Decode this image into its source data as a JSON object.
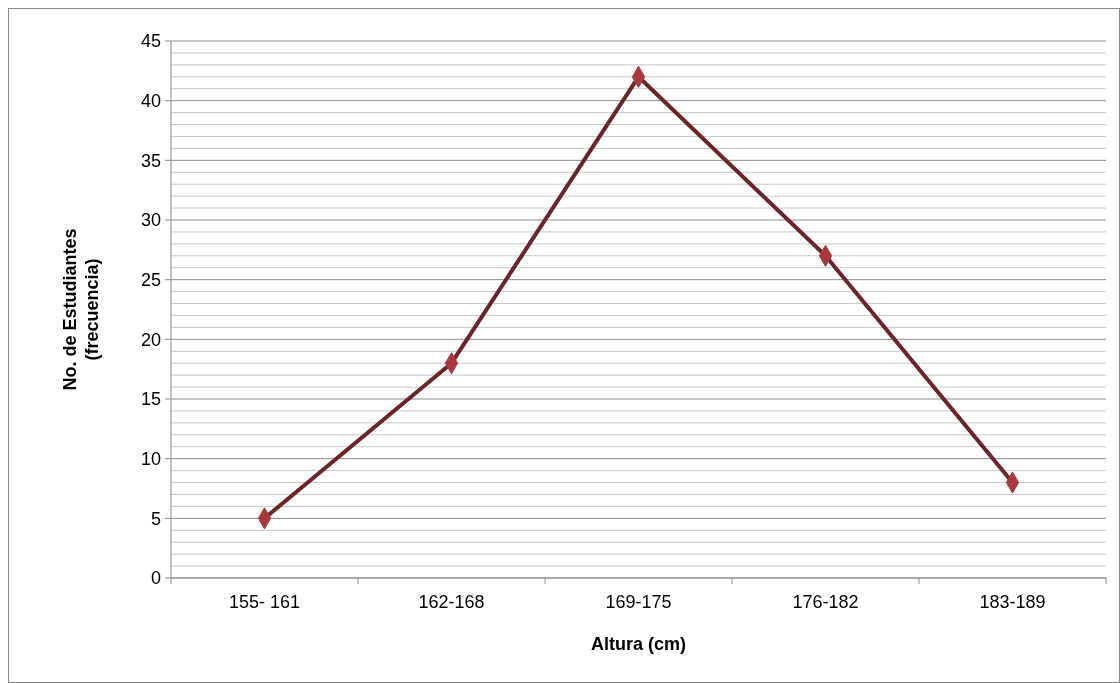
{
  "chart_data": {
    "type": "line",
    "xlabel": "Altura (cm)",
    "ylabel": "No. de Estudiantes\n(frecuencia)",
    "categories": [
      "155- 161",
      "162-168",
      "169-175",
      "176-182",
      "183-189"
    ],
    "series": [
      {
        "color": "#6b2427",
        "values": [
          5,
          18,
          42,
          27,
          8
        ]
      }
    ],
    "ylim": [
      0,
      45
    ],
    "yticks": [
      0,
      {
        "value": 1,
        "label": null
      },
      {
        "value": 2,
        "label": null
      },
      {
        "value": 3,
        "label": null
      },
      {
        "value": 4,
        "label": null
      },
      5,
      {
        "value": 6,
        "label": null
      },
      {
        "value": 7,
        "label": null
      },
      {
        "value": 8,
        "label": null
      },
      {
        "value": 9,
        "label": null
      },
      10,
      {
        "value": 11,
        "label": null
      },
      {
        "value": 12,
        "label": null
      },
      {
        "value": 13,
        "label": null
      },
      {
        "value": 14,
        "label": null
      },
      15,
      {
        "value": 16,
        "label": null
      },
      {
        "value": 17,
        "label": null
      },
      {
        "value": 18,
        "label": null
      },
      {
        "value": 19,
        "label": null
      },
      20,
      {
        "value": 21,
        "label": null
      },
      {
        "value": 22,
        "label": null
      },
      {
        "value": 23,
        "label": null
      },
      {
        "value": 24,
        "label": null
      },
      25,
      {
        "value": 26,
        "label": null
      },
      {
        "value": 27,
        "label": null
      },
      {
        "value": 28,
        "label": null
      },
      {
        "value": 29,
        "label": null
      },
      30,
      {
        "value": 31,
        "label": null
      },
      {
        "value": 32,
        "label": null
      },
      {
        "value": 33,
        "label": null
      },
      {
        "value": 34,
        "label": null
      },
      35,
      {
        "value": 36,
        "label": null
      },
      {
        "value": 37,
        "label": null
      },
      {
        "value": 38,
        "label": null
      },
      {
        "value": 39,
        "label": null
      },
      40,
      {
        "value": 41,
        "label": null
      },
      {
        "value": 42,
        "label": null
      },
      {
        "value": 43,
        "label": null
      },
      {
        "value": 44,
        "label": null
      },
      45
    ],
    "grid": "y",
    "marker": "diamond",
    "line_style": "solid"
  }
}
